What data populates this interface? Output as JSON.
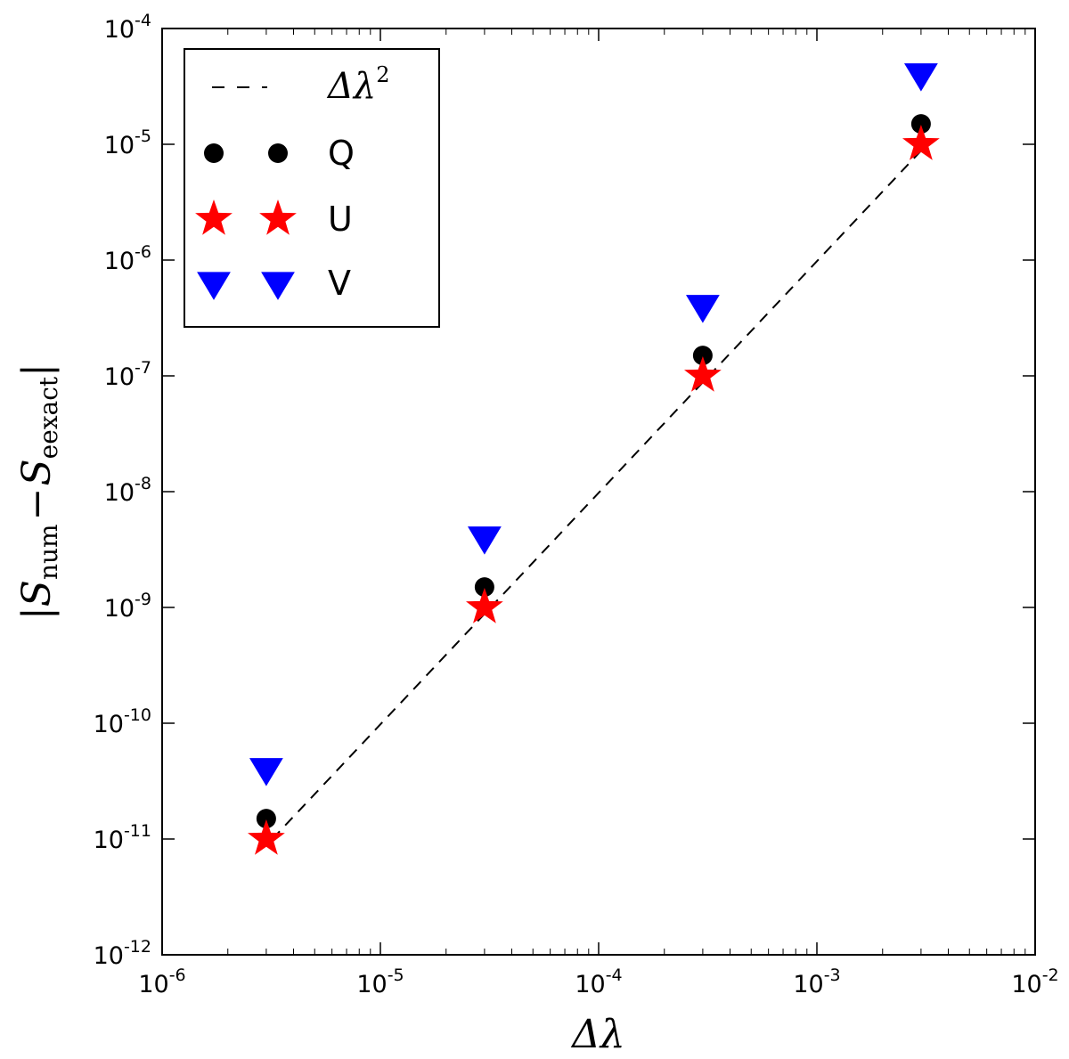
{
  "chart_data": {
    "type": "scatter",
    "xscale": "log",
    "yscale": "log",
    "xlim": [
      1e-06,
      0.01
    ],
    "ylim": [
      1e-12,
      0.0001
    ],
    "xlabel": "Δλ",
    "ylabel": "|S_num − S_eexact|",
    "ylabel_parts": {
      "open": "|",
      "S1": "S",
      "sub1": "num",
      "minus": "−",
      "S2": "S",
      "sub2": "eexact",
      "close": "|"
    },
    "x_ticks": [
      {
        "base": "10",
        "exp": "-6"
      },
      {
        "base": "10",
        "exp": "-5"
      },
      {
        "base": "10",
        "exp": "-4"
      },
      {
        "base": "10",
        "exp": "-3"
      },
      {
        "base": "10",
        "exp": "-2"
      }
    ],
    "y_ticks": [
      {
        "base": "10",
        "exp": "-4"
      },
      {
        "base": "10",
        "exp": "-5"
      },
      {
        "base": "10",
        "exp": "-6"
      },
      {
        "base": "10",
        "exp": "-7"
      },
      {
        "base": "10",
        "exp": "-8"
      },
      {
        "base": "10",
        "exp": "-9"
      },
      {
        "base": "10",
        "exp": "-10"
      },
      {
        "base": "10",
        "exp": "-11"
      },
      {
        "base": "10",
        "exp": "-12"
      }
    ],
    "legend_position": "top-left",
    "series": [
      {
        "name": "Δλ²",
        "name_base": "Δλ",
        "name_exp": "2",
        "kind": "line",
        "style": "dashed",
        "color": "#000000",
        "x": [
          3.2e-06,
          0.0032
        ],
        "y": [
          1e-11,
          1e-05
        ]
      },
      {
        "name": "Q",
        "kind": "marker",
        "marker": "circle",
        "color": "#000000",
        "x": [
          3e-06,
          3e-05,
          0.0003,
          0.003
        ],
        "y": [
          1.5e-11,
          1.5e-09,
          1.5e-07,
          1.5e-05
        ]
      },
      {
        "name": "U",
        "kind": "marker",
        "marker": "star",
        "color": "#ff0000",
        "x": [
          3e-06,
          3e-05,
          0.0003,
          0.003
        ],
        "y": [
          1e-11,
          1e-09,
          1e-07,
          1e-05
        ]
      },
      {
        "name": "V",
        "kind": "marker",
        "marker": "triangle-down",
        "color": "#0000ff",
        "x": [
          3e-06,
          3e-05,
          0.0003,
          0.003
        ],
        "y": [
          4e-11,
          4e-09,
          4e-07,
          4e-05
        ]
      }
    ]
  }
}
